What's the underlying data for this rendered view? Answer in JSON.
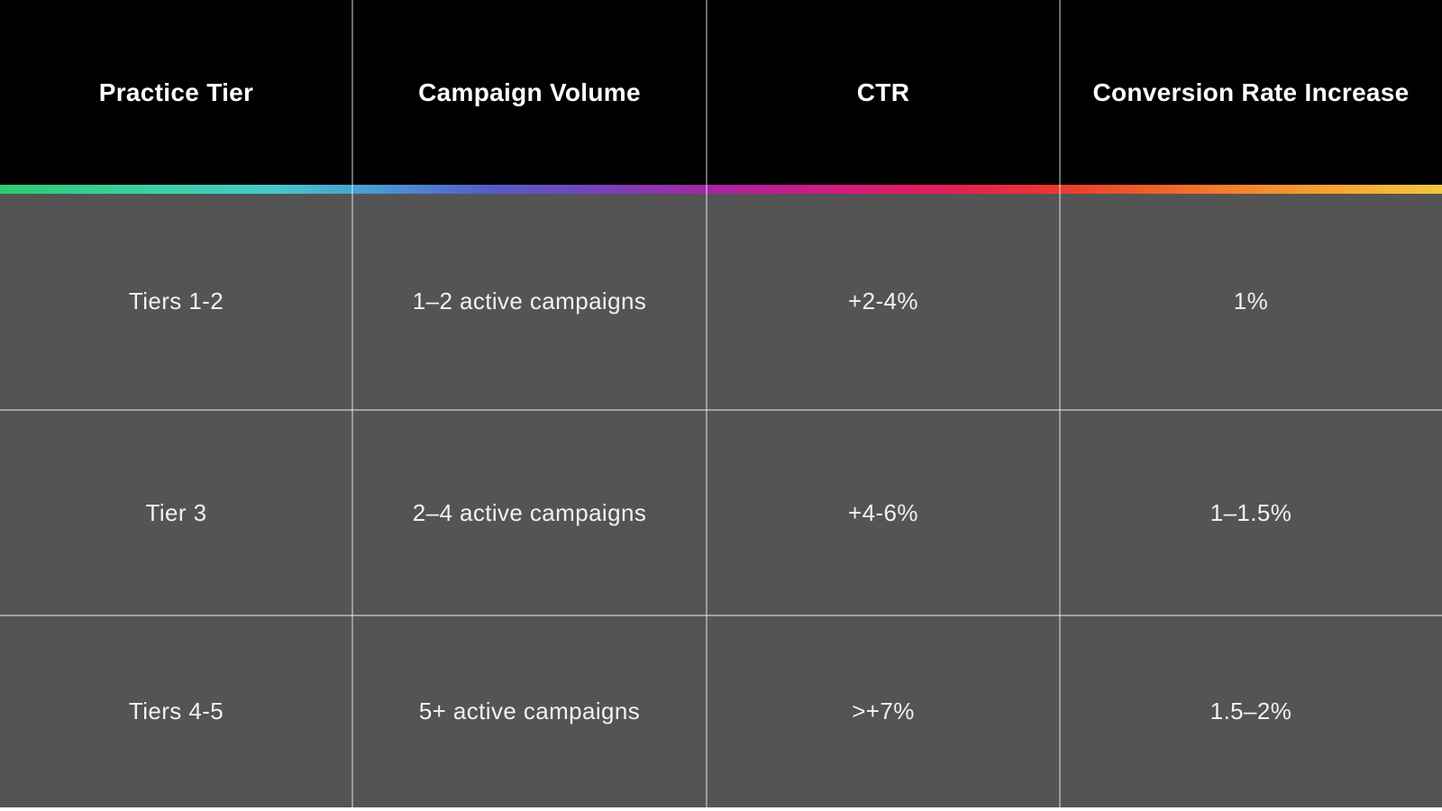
{
  "chart_data": {
    "type": "table",
    "columns": [
      "Practice Tier",
      "Campaign Volume",
      "CTR",
      "Conversion Rate Increase"
    ],
    "rows": [
      [
        "Tiers 1-2",
        "1–2 active campaigns",
        "+2-4%",
        "1%"
      ],
      [
        "Tier 3",
        "2–4 active campaigns",
        "+4-6%",
        "1–1.5%"
      ],
      [
        "Tiers 4-5",
        "5+ active campaigns",
        ">+7%",
        "1.5–2%"
      ]
    ]
  },
  "colors": {
    "header_bg": "#000000",
    "body_bg": "#545454",
    "header_text": "#ffffff",
    "body_text": "#f1f1f1",
    "divider": "rgba(255,255,255,0.42)",
    "gradient_stops": [
      "#2ecb72",
      "#3ecfa6",
      "#46c9c9",
      "#4b92d4",
      "#555cc9",
      "#7e3eb5",
      "#b0219b",
      "#d31b7e",
      "#e51e57",
      "#e9392f",
      "#f0602b",
      "#f5832c",
      "#f7a133",
      "#f1c83e"
    ]
  }
}
